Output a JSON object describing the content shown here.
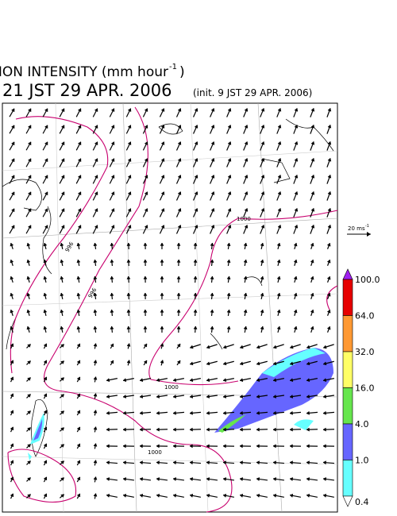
{
  "header": {
    "title": "PRECIPITATION INTENSITY (mm hour",
    "title_exponent": "-1",
    "title_close": ")",
    "valid_time": "21 JST 29 APR. 2006",
    "init_time": "(init. 9 JST 29 APR. 2006)"
  },
  "scale": {
    "label": "20 ms",
    "exponent": "-1"
  },
  "isobar_labels": [
    "1000",
    "996",
    "996",
    "1000",
    "1000"
  ],
  "colorbar": {
    "labels": [
      "100.0",
      "64.0",
      "32.0",
      "16.0",
      "4.0",
      "1.0",
      "0.4"
    ],
    "colors": [
      "#a020f0",
      "#e60000",
      "#ff9933",
      "#ffff66",
      "#66e64d",
      "#6666ff",
      "#66ffff",
      "#ffffff"
    ]
  }
}
